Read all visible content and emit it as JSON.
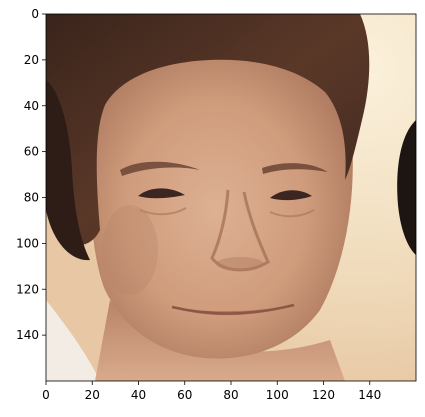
{
  "image": {
    "description_kind": "photo-crop",
    "palette": {
      "background": "#f2e3c8",
      "skin": "#cc9a78",
      "skin_light": "#dbb092",
      "hair": "#4a2e22",
      "hair_dark": "#2e1c16",
      "shadow": "#8a5e47",
      "dark_edge": "#1d1512",
      "lip": "#b07462",
      "brow": "#6b4434",
      "eye": "#3b2621"
    }
  },
  "chart_data": {
    "type": "image",
    "title": "",
    "xlabel": "",
    "ylabel": "",
    "xlim": [
      0,
      160
    ],
    "ylim": [
      160,
      0
    ],
    "xticks": [
      0,
      20,
      40,
      60,
      80,
      100,
      120,
      140
    ],
    "yticks": [
      0,
      20,
      40,
      60,
      80,
      100,
      120,
      140
    ],
    "xtick_labels": [
      "0",
      "20",
      "40",
      "60",
      "80",
      "100",
      "120",
      "140"
    ],
    "ytick_labels": [
      "0",
      "20",
      "40",
      "60",
      "80",
      "100",
      "120",
      "140"
    ]
  }
}
